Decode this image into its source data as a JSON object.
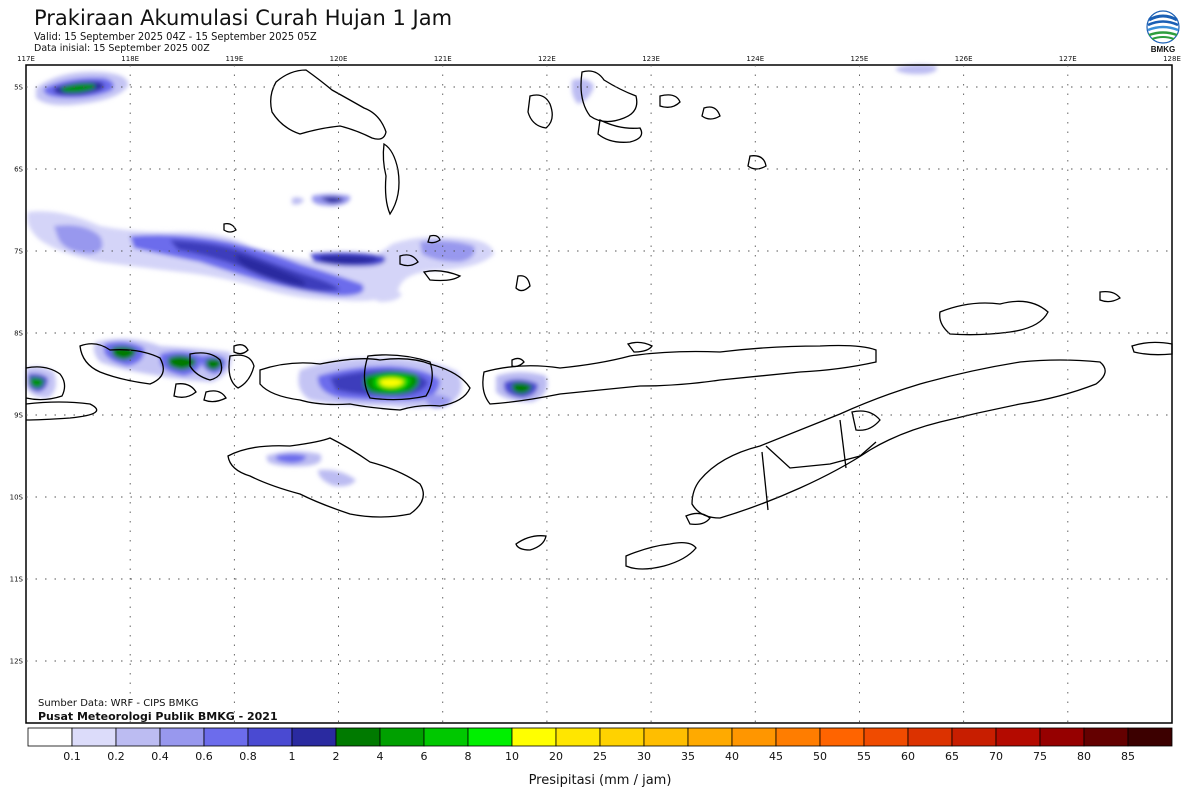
{
  "header": {
    "title": "Prakiraan Akumulasi Curah Hujan 1 Jam",
    "valid": "Valid: 15 September 2025 04Z - 15 September 2025 05Z",
    "initial": "Data inisial: 15 September 2025 00Z"
  },
  "logo": {
    "text": "BMKG",
    "icon": "bmkg-logo-icon"
  },
  "map": {
    "lon_labels": [
      "117E",
      "118E",
      "119E",
      "120E",
      "121E",
      "122E",
      "123E",
      "124E",
      "125E",
      "126E",
      "127E",
      "128E"
    ],
    "lat_labels": [
      "5S",
      "6S",
      "7S",
      "8S",
      "9S",
      "10S",
      "11S",
      "12S"
    ],
    "grid": true
  },
  "footer": {
    "source": "Sumber Data: WRF - CIPS BMKG",
    "publisher": "Pusat Meteorologi Publik BMKG - 2021"
  },
  "legend": {
    "unit_label": "Presipitasi (mm / jam)",
    "values": [
      "0.1",
      "0.2",
      "0.4",
      "0.6",
      "0.8",
      "1",
      "2",
      "4",
      "6",
      "8",
      "10",
      "20",
      "25",
      "30",
      "35",
      "40",
      "45",
      "50",
      "55",
      "60",
      "65",
      "70",
      "75",
      "80",
      "85"
    ],
    "colors": [
      "#ffffff",
      "#dcdcfa",
      "#bcbcf2",
      "#9898ee",
      "#6c6cec",
      "#4a4ad2",
      "#2a2aa0",
      "#007a00",
      "#00a000",
      "#00c800",
      "#00f000",
      "#ffff00",
      "#ffe600",
      "#ffd200",
      "#ffbe00",
      "#ffaa00",
      "#ff9600",
      "#ff7d00",
      "#ff6400",
      "#f04b00",
      "#dc3200",
      "#c81e00",
      "#b40a00",
      "#960000",
      "#640000",
      "#3c0000"
    ]
  }
}
